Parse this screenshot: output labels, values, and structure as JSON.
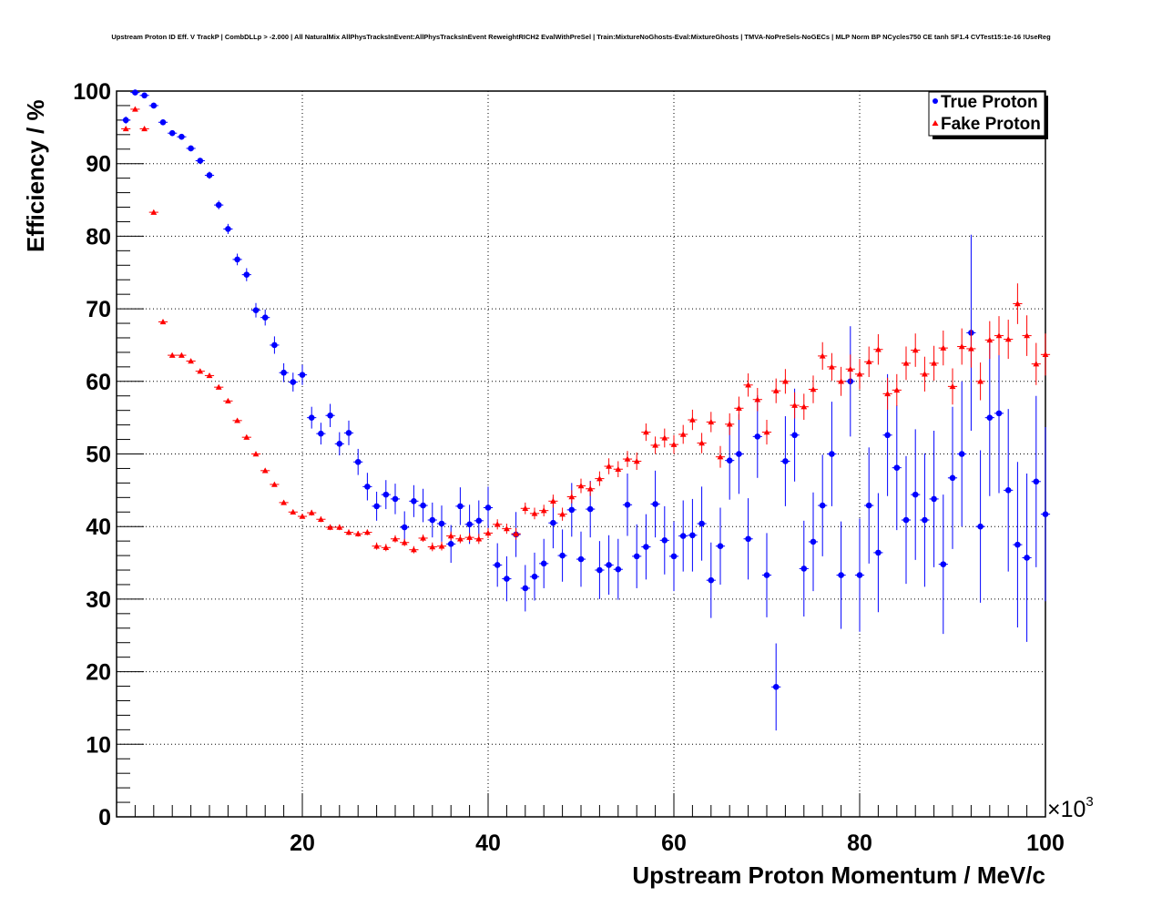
{
  "chart_data": {
    "type": "scatter",
    "title": "Upstream Proton ID Eff. V TrackP | CombDLLp > -2.000 | All NaturalMix AllPhysTracksInEvent:AllPhysTracksInEvent ReweightRICH2 EvalWithPreSel | Train:MixtureNoGhosts-Eval:MixtureGhosts | TMVA-NoPreSels-NoGECs | MLP Norm BP NCycles750 CE tanh SF1.4 CVTest15:1e-16 !UseReg",
    "xlabel": "Upstream Proton Momentum / MeV/c",
    "ylabel": "Efficiency / %",
    "x_multiplier": "×10",
    "x_multiplier_exp": "3",
    "xlim": [
      0,
      100
    ],
    "ylim": [
      0,
      100
    ],
    "x_ticks": [
      "20",
      "40",
      "60",
      "80",
      "100"
    ],
    "y_ticks": [
      "0",
      "10",
      "20",
      "30",
      "40",
      "50",
      "60",
      "70",
      "80",
      "90",
      "100"
    ],
    "x": [
      1,
      2,
      3,
      4,
      5,
      6,
      7,
      8,
      9,
      10,
      11,
      12,
      13,
      14,
      15,
      16,
      17,
      18,
      19,
      20,
      21,
      22,
      23,
      24,
      25,
      26,
      27,
      28,
      29,
      30,
      31,
      32,
      33,
      34,
      35,
      36,
      37,
      38,
      39,
      40,
      41,
      42,
      43,
      44,
      45,
      46,
      47,
      48,
      49,
      50,
      51,
      52,
      53,
      54,
      55,
      56,
      57,
      58,
      59,
      60,
      61,
      62,
      63,
      64,
      65,
      66,
      67,
      68,
      69,
      70,
      71,
      72,
      73,
      74,
      75,
      76,
      77,
      78,
      79,
      80,
      81,
      82,
      83,
      84,
      85,
      86,
      87,
      88,
      89,
      90,
      91,
      92,
      93,
      94,
      95,
      96,
      97,
      98,
      99,
      100
    ],
    "series": [
      {
        "name": "True Proton",
        "color": "#0000ff",
        "marker": "circle",
        "values": [
          96.0,
          99.8,
          99.4,
          98.0,
          95.7,
          94.2,
          93.7,
          92.1,
          90.4,
          88.4,
          84.3,
          81.0,
          76.8,
          74.7,
          69.8,
          68.8,
          65.0,
          61.2,
          59.9,
          60.9,
          55.0,
          52.8,
          55.3,
          51.4,
          52.9,
          48.9,
          45.5,
          42.8,
          44.4,
          43.8,
          39.9,
          43.5,
          42.9,
          40.9,
          40.4,
          37.6,
          42.8,
          40.3,
          40.8,
          42.6,
          34.7,
          32.8,
          38.9,
          31.5,
          33.1,
          34.9,
          40.5,
          36.0,
          42.3,
          35.5,
          42.4,
          34.0,
          34.7,
          34.1,
          43.0,
          35.9,
          37.2,
          43.1,
          38.1,
          35.9,
          38.7,
          38.8,
          40.4,
          32.6,
          37.3,
          49.1,
          50.0,
          38.3,
          52.4,
          33.3,
          17.9,
          49.0,
          52.6,
          34.2,
          37.9,
          42.9,
          50.0,
          33.3,
          60.0,
          33.3,
          42.9,
          36.4,
          52.6,
          48.1,
          40.9,
          44.4,
          40.9,
          43.8,
          34.8,
          46.7,
          50.0,
          66.7,
          40.0,
          55.0,
          55.6,
          45.0,
          37.5,
          35.7,
          46.2,
          41.7
        ],
        "errors": [
          0.5,
          0.3,
          0.3,
          0.4,
          0.4,
          0.4,
          0.4,
          0.4,
          0.4,
          0.5,
          0.6,
          0.7,
          0.8,
          0.9,
          1.0,
          1.1,
          1.2,
          1.3,
          1.3,
          1.4,
          1.5,
          1.5,
          1.6,
          1.6,
          1.7,
          1.8,
          1.9,
          2.0,
          2.0,
          2.1,
          2.2,
          2.2,
          2.3,
          2.4,
          2.5,
          2.6,
          2.6,
          2.7,
          2.8,
          2.9,
          3.0,
          3.1,
          3.1,
          3.2,
          3.3,
          3.4,
          3.5,
          3.6,
          3.7,
          3.8,
          3.9,
          4.0,
          4.1,
          4.2,
          4.3,
          4.4,
          4.5,
          4.6,
          4.7,
          4.8,
          4.9,
          5.0,
          5.1,
          5.2,
          5.3,
          5.4,
          5.5,
          5.6,
          5.7,
          5.8,
          6.0,
          6.2,
          6.4,
          6.6,
          6.8,
          7.0,
          7.2,
          7.4,
          7.6,
          7.8,
          8.0,
          8.2,
          8.4,
          8.6,
          8.8,
          9.0,
          9.2,
          9.4,
          9.6,
          9.8,
          10.0,
          13.5,
          10.5,
          10.8,
          11.0,
          11.2,
          11.4,
          11.6,
          11.8,
          12.0
        ]
      },
      {
        "name": "Fake Proton",
        "color": "#ff0000",
        "marker": "triangle",
        "values": [
          94.8,
          97.5,
          94.8,
          83.3,
          68.2,
          63.6,
          63.6,
          62.8,
          61.4,
          60.8,
          59.2,
          57.3,
          54.6,
          52.3,
          50.0,
          47.7,
          45.8,
          43.3,
          42.0,
          41.4,
          41.9,
          41.0,
          39.9,
          39.9,
          39.2,
          39.0,
          39.2,
          37.3,
          37.1,
          38.3,
          37.8,
          36.8,
          38.4,
          37.2,
          37.3,
          38.7,
          38.3,
          38.5,
          38.3,
          39.1,
          40.3,
          39.7,
          39.0,
          42.5,
          41.8,
          42.2,
          43.5,
          41.7,
          44.1,
          45.6,
          45.2,
          46.6,
          48.3,
          47.9,
          49.3,
          49.0,
          53.0,
          51.2,
          52.2,
          51.3,
          52.7,
          54.7,
          51.5,
          54.4,
          49.6,
          54.1,
          56.3,
          59.5,
          57.5,
          53.0,
          58.7,
          60.0,
          56.7,
          56.5,
          58.9,
          63.5,
          62.0,
          60.0,
          61.7,
          61.0,
          62.7,
          64.4,
          58.3,
          58.8,
          62.5,
          64.3,
          61.0,
          62.5,
          64.6,
          59.3,
          64.8,
          64.5,
          60.0,
          65.7,
          66.3,
          65.8,
          70.7,
          66.3,
          62.4,
          63.7
        ],
        "errors": [
          0.3,
          0.3,
          0.3,
          0.3,
          0.3,
          0.3,
          0.3,
          0.3,
          0.3,
          0.3,
          0.3,
          0.3,
          0.3,
          0.3,
          0.3,
          0.3,
          0.3,
          0.3,
          0.3,
          0.3,
          0.4,
          0.4,
          0.4,
          0.4,
          0.4,
          0.4,
          0.4,
          0.5,
          0.5,
          0.5,
          0.5,
          0.5,
          0.5,
          0.6,
          0.6,
          0.6,
          0.6,
          0.6,
          0.7,
          0.7,
          0.7,
          0.7,
          0.8,
          0.8,
          0.8,
          0.8,
          0.9,
          0.9,
          0.9,
          1.0,
          1.0,
          1.0,
          1.1,
          1.1,
          1.1,
          1.2,
          1.2,
          1.2,
          1.3,
          1.3,
          1.3,
          1.4,
          1.4,
          1.4,
          1.5,
          1.5,
          1.6,
          1.6,
          1.6,
          1.7,
          1.7,
          1.7,
          1.8,
          1.8,
          1.9,
          1.9,
          1.9,
          2.0,
          2.0,
          2.1,
          2.1,
          2.1,
          2.2,
          2.2,
          2.3,
          2.3,
          2.4,
          2.4,
          2.4,
          2.5,
          2.5,
          2.6,
          2.6,
          2.6,
          2.7,
          2.7,
          2.8,
          2.8,
          2.9,
          2.9
        ]
      }
    ],
    "legend": {
      "position": "top-right",
      "entries": [
        "True Proton",
        "Fake Proton"
      ]
    }
  }
}
